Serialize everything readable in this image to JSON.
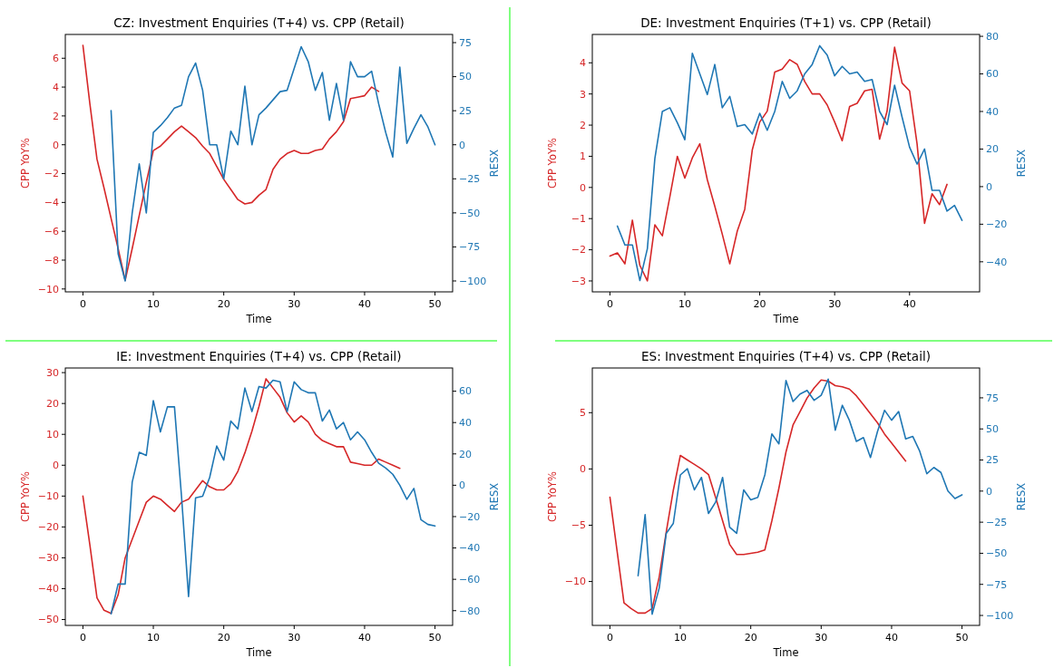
{
  "chart_data": [
    {
      "type": "line",
      "title": "CZ: Investment Enquiries (T+4) vs. CPP (Retail)",
      "xlabel": "Time",
      "ylabel": "CPP YoY%",
      "y2label": "RESX",
      "xlim": [
        -2.5,
        52.5
      ],
      "xticks": [
        0,
        10,
        20,
        30,
        40,
        50
      ],
      "ylim": [
        -10.2,
        7.65
      ],
      "yticks": [
        -10,
        -8,
        -6,
        -4,
        -2,
        0,
        2,
        4,
        6
      ],
      "y2lim": [
        -108,
        81
      ],
      "y2ticks": [
        -100,
        -75,
        -50,
        -25,
        0,
        25,
        50,
        75
      ],
      "series": [
        {
          "color": "#d62728",
          "x": [
            0,
            1,
            2,
            3,
            4,
            5,
            6,
            7,
            8,
            9,
            10,
            11,
            12,
            13,
            14,
            15,
            16,
            17,
            18,
            19,
            20,
            21,
            22,
            23,
            24,
            25,
            26,
            27,
            28,
            29,
            30,
            31,
            32,
            33,
            34,
            35,
            36,
            37,
            38,
            39,
            40,
            41,
            42
          ],
          "values": [
            6.9,
            2.8,
            -1.0,
            -3.0,
            -5.1,
            -7.2,
            -9.4,
            -7.2,
            -4.9,
            -2.6,
            -0.4,
            -0.1,
            0.4,
            0.9,
            1.3,
            0.9,
            0.5,
            -0.1,
            -0.6,
            -1.5,
            -2.4,
            -3.1,
            -3.8,
            -4.1,
            -4.0,
            -3.5,
            -3.1,
            -1.7,
            -1.0,
            -0.6,
            -0.4,
            -0.6,
            -0.6,
            -0.4,
            -0.3,
            0.4,
            0.9,
            1.6,
            3.2,
            3.3,
            3.4,
            4.0,
            3.7
          ]
        },
        {
          "color": "#1f77b4",
          "axis": "y2",
          "x": [
            4,
            5,
            6,
            7,
            8,
            9,
            10,
            11,
            12,
            13,
            14,
            15,
            16,
            17,
            18,
            19,
            20,
            21,
            22,
            23,
            24,
            25,
            26,
            27,
            28,
            29,
            30,
            31,
            32,
            33,
            34,
            35,
            36,
            37,
            38,
            39,
            40,
            41,
            42,
            43,
            44,
            45,
            46,
            47,
            48,
            49,
            50
          ],
          "values": [
            25,
            -80,
            -100,
            -50,
            -14,
            -50,
            9,
            14,
            20,
            27,
            29,
            50,
            60,
            40,
            0,
            0,
            -25,
            10,
            0,
            43,
            0,
            22,
            27,
            33,
            39,
            40,
            56,
            72,
            61,
            40,
            53,
            18,
            45,
            18,
            61,
            50,
            50,
            54,
            30,
            9,
            -9,
            57,
            1,
            12,
            22,
            13,
            0
          ]
        }
      ]
    },
    {
      "type": "line",
      "title": "DE: Investment Enquiries (T+1) vs. CPP (Retail)",
      "xlabel": "Time",
      "ylabel": "CPP YoY%",
      "y2label": "RESX",
      "xlim": [
        -2.35,
        49.35
      ],
      "xticks": [
        0,
        10,
        20,
        30,
        40
      ],
      "ylim": [
        -3.35,
        4.91
      ],
      "yticks": [
        -3,
        -2,
        -1,
        0,
        1,
        2,
        3,
        4
      ],
      "y2lim": [
        -56,
        81
      ],
      "y2ticks": [
        -40,
        -20,
        0,
        20,
        40,
        60,
        80
      ],
      "series": [
        {
          "color": "#d62728",
          "x": [
            0,
            1,
            2,
            3,
            4,
            5,
            6,
            7,
            8,
            9,
            10,
            11,
            12,
            13,
            14,
            15,
            16,
            17,
            18,
            19,
            20,
            21,
            22,
            23,
            24,
            25,
            26,
            27,
            28,
            29,
            30,
            31,
            32,
            33,
            34,
            35,
            36,
            37,
            38,
            39,
            40,
            41,
            42,
            43,
            44,
            45
          ],
          "values": [
            -2.2,
            -2.1,
            -2.45,
            -1.05,
            -2.5,
            -3.0,
            -1.2,
            -1.55,
            -0.3,
            1.0,
            0.3,
            0.95,
            1.4,
            0.25,
            -0.6,
            -1.5,
            -2.45,
            -1.4,
            -0.7,
            1.2,
            2.1,
            2.45,
            3.7,
            3.8,
            4.1,
            3.95,
            3.4,
            3.0,
            3.0,
            2.65,
            2.1,
            1.5,
            2.6,
            2.7,
            3.1,
            3.15,
            1.55,
            2.45,
            4.5,
            3.35,
            3.1,
            1.4,
            -1.15,
            -0.2,
            -0.55,
            0.1
          ]
        },
        {
          "color": "#1f77b4",
          "axis": "y2",
          "x": [
            1,
            2,
            3,
            4,
            5,
            6,
            7,
            8,
            9,
            10,
            11,
            12,
            13,
            14,
            15,
            16,
            17,
            18,
            19,
            20,
            21,
            22,
            23,
            24,
            25,
            26,
            27,
            28,
            29,
            30,
            31,
            32,
            33,
            34,
            35,
            36,
            37,
            38,
            39,
            40,
            41,
            42,
            43,
            44,
            45,
            46,
            47
          ],
          "values": [
            -21,
            -31,
            -31,
            -50,
            -33,
            15,
            40,
            42,
            34,
            25,
            71,
            60,
            49,
            65,
            42,
            48,
            32,
            33,
            28,
            39,
            30,
            40,
            56,
            47,
            51,
            60,
            65,
            75,
            70,
            59,
            64,
            60,
            61,
            56,
            57,
            40,
            33,
            54,
            37,
            21,
            12,
            20,
            -2,
            -2,
            -13,
            -10,
            -18
          ]
        }
      ]
    },
    {
      "type": "line",
      "title": "IE: Investment Enquiries (T+4) vs. CPP (Retail)",
      "xlabel": "Time",
      "ylabel": "CPP YoY%",
      "y2label": "RESX",
      "xlim": [
        -2.5,
        52.5
      ],
      "xticks": [
        0,
        10,
        20,
        30,
        40,
        50
      ],
      "ylim": [
        -51.9,
        31.5
      ],
      "yticks": [
        -50,
        -40,
        -30,
        -20,
        -10,
        0,
        10,
        20,
        30
      ],
      "y2lim": [
        -89.4,
        74.8
      ],
      "y2ticks": [
        -80,
        -60,
        -40,
        -20,
        0,
        20,
        40,
        60
      ],
      "series": [
        {
          "color": "#d62728",
          "x": [
            0,
            1,
            2,
            3,
            4,
            5,
            6,
            7,
            8,
            9,
            10,
            11,
            12,
            13,
            14,
            15,
            16,
            17,
            18,
            19,
            20,
            21,
            22,
            23,
            24,
            25,
            26,
            27,
            28,
            29,
            30,
            31,
            32,
            33,
            34,
            35,
            36,
            37,
            38,
            39,
            40,
            41,
            42,
            43,
            44,
            45
          ],
          "values": [
            -10,
            -26,
            -43,
            -47,
            -48,
            -42,
            -30,
            -24,
            -18,
            -12,
            -10,
            -11,
            -13,
            -15,
            -12,
            -11,
            -8,
            -5,
            -7,
            -8,
            -8,
            -6,
            -2,
            4,
            11,
            19,
            28,
            25,
            22,
            17,
            14,
            16,
            14,
            10,
            8,
            7,
            6,
            6,
            1,
            0.5,
            0,
            0,
            2,
            1,
            0,
            -1
          ]
        },
        {
          "color": "#1f77b4",
          "axis": "y2",
          "x": [
            4,
            5,
            6,
            7,
            8,
            9,
            10,
            11,
            12,
            13,
            14,
            15,
            16,
            17,
            18,
            19,
            20,
            21,
            22,
            23,
            24,
            25,
            26,
            27,
            28,
            29,
            30,
            31,
            32,
            33,
            34,
            35,
            36,
            37,
            38,
            39,
            40,
            41,
            42,
            43,
            44,
            45,
            46,
            47,
            48,
            49,
            50
          ],
          "values": [
            -82,
            -63,
            -63,
            2,
            21,
            19,
            54,
            34,
            50,
            50,
            -7,
            -71,
            -8,
            -7,
            5,
            25,
            16,
            41,
            36,
            62,
            47,
            63,
            62,
            67,
            66,
            47,
            66,
            61,
            59,
            59,
            41,
            48,
            36,
            40,
            29,
            34,
            29,
            21,
            14,
            11,
            7,
            0,
            -9,
            -2,
            -22,
            -25,
            -26
          ]
        }
      ]
    },
    {
      "type": "line",
      "title": "ES: Investment Enquiries (T+4) vs. CPP (Retail)",
      "xlabel": "Time",
      "ylabel": "CPP YoY%",
      "y2label": "RESX",
      "xlim": [
        -2.5,
        52.5
      ],
      "xticks": [
        0,
        10,
        20,
        30,
        40,
        50
      ],
      "ylim": [
        -13.9,
        8.97
      ],
      "yticks": [
        -10,
        -5,
        0,
        5
      ],
      "y2lim": [
        -108,
        99
      ],
      "y2ticks": [
        -100,
        -75,
        -50,
        -25,
        0,
        25,
        50,
        75
      ],
      "series": [
        {
          "color": "#d62728",
          "x": [
            0,
            1,
            2,
            3,
            4,
            5,
            6,
            7,
            8,
            9,
            10,
            11,
            12,
            13,
            14,
            15,
            16,
            17,
            18,
            19,
            20,
            21,
            22,
            23,
            24,
            25,
            26,
            27,
            28,
            29,
            30,
            31,
            32,
            33,
            34,
            35,
            36,
            37,
            38,
            39,
            40,
            41,
            42
          ],
          "values": [
            -2.5,
            -7.2,
            -11.9,
            -12.4,
            -12.8,
            -12.8,
            -12.4,
            -9.6,
            -5.6,
            -1.9,
            1.2,
            0.8,
            0.4,
            0,
            -0.5,
            -2.5,
            -4.6,
            -6.7,
            -7.6,
            -7.6,
            -7.5,
            -7.4,
            -7.2,
            -4.6,
            -1.7,
            1.5,
            3.9,
            5.1,
            6.3,
            7.2,
            7.9,
            7.8,
            7.4,
            7.3,
            7.1,
            6.5,
            5.7,
            4.9,
            4.1,
            3.1,
            2.3,
            1.5,
            0.7
          ]
        },
        {
          "color": "#1f77b4",
          "axis": "y2",
          "x": [
            4,
            5,
            6,
            7,
            8,
            9,
            10,
            11,
            12,
            13,
            14,
            15,
            16,
            17,
            18,
            19,
            20,
            21,
            22,
            23,
            24,
            25,
            26,
            27,
            28,
            29,
            30,
            31,
            32,
            33,
            34,
            35,
            36,
            37,
            38,
            39,
            40,
            41,
            42,
            43,
            44,
            45,
            46,
            47,
            48,
            49,
            50
          ],
          "values": [
            -68,
            -19,
            -99,
            -78,
            -34,
            -26,
            13,
            18,
            1,
            11,
            -18,
            -9,
            11,
            -29,
            -34,
            1,
            -7,
            -5,
            13,
            46,
            38,
            89,
            72,
            78,
            81,
            73,
            77,
            90,
            49,
            69,
            57,
            40,
            43,
            27,
            48,
            65,
            57,
            64,
            42,
            44,
            32,
            14,
            19,
            15,
            0,
            -6,
            -3
          ]
        }
      ]
    }
  ]
}
